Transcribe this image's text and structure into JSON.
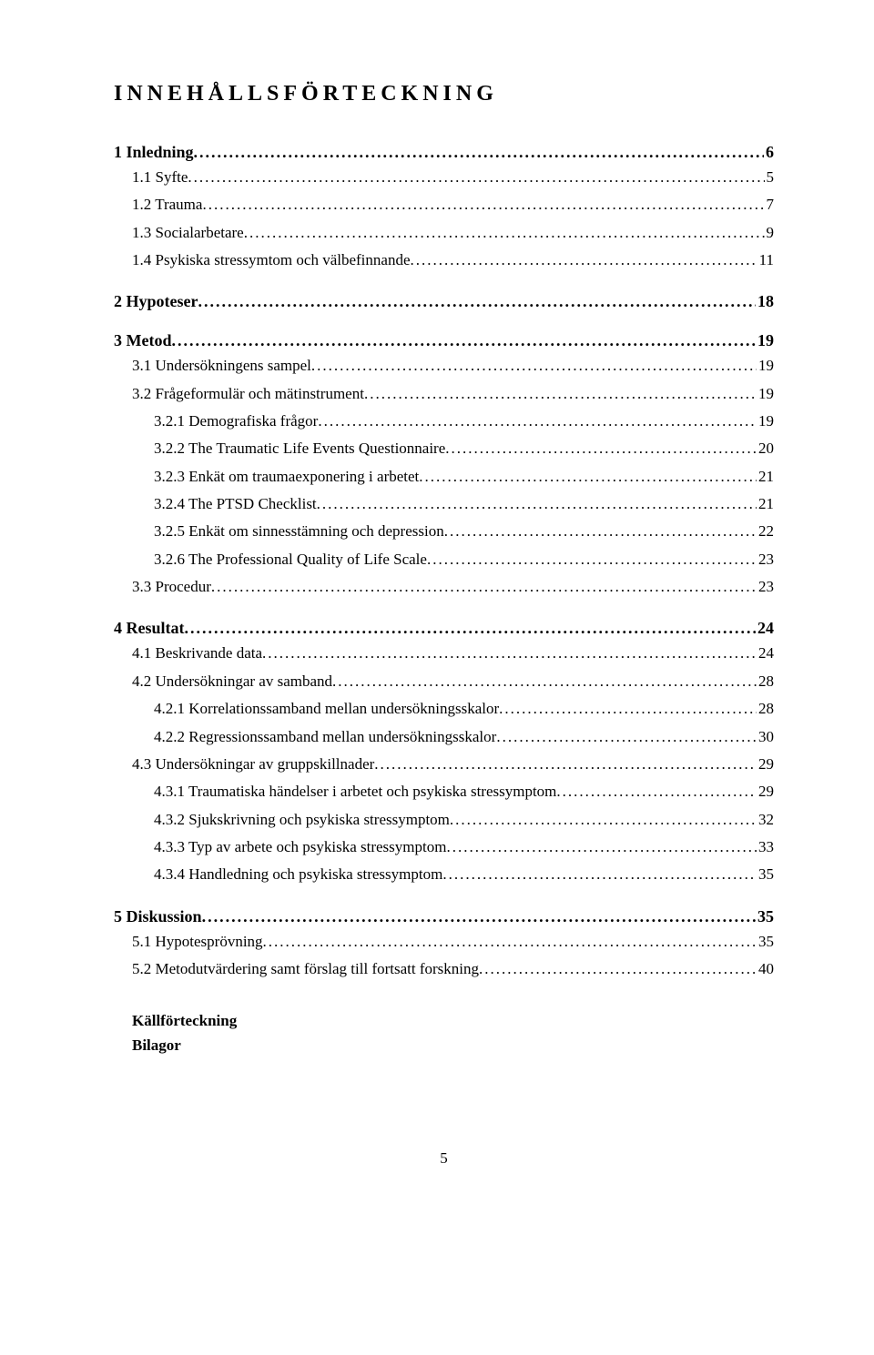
{
  "title": "INNEHÅLLSFÖRTECKNING",
  "entries": [
    {
      "level": 1,
      "label": "1 Inledning",
      "page": "6"
    },
    {
      "level": 2,
      "label": "1.1 Syfte",
      "page": "5"
    },
    {
      "level": 2,
      "label": "1.2 Trauma",
      "page": "7"
    },
    {
      "level": 2,
      "label": "1.3 Socialarbetare",
      "page": "9"
    },
    {
      "level": 2,
      "label": "1.4 Psykiska stressymtom och välbefinnande",
      "page": "11"
    },
    {
      "level": 1,
      "label": "2 Hypoteser",
      "page": "18"
    },
    {
      "level": 1,
      "label": "3 Metod",
      "page": "19"
    },
    {
      "level": 2,
      "label": "3.1 Undersökningens sampel",
      "page": "19"
    },
    {
      "level": 2,
      "label": "3.2 Frågeformulär och mätinstrument",
      "page": "19"
    },
    {
      "level": 3,
      "label": "3.2.1 Demografiska frågor",
      "page": "19"
    },
    {
      "level": 3,
      "label": "3.2.2 The Traumatic Life Events Questionnaire",
      "page": "20"
    },
    {
      "level": 3,
      "label": "3.2.3 Enkät om traumaexponering i arbetet",
      "page": "21"
    },
    {
      "level": 3,
      "label": "3.2.4 The PTSD Checklist",
      "page": "21"
    },
    {
      "level": 3,
      "label": "3.2.5 Enkät om sinnesstämning och depression",
      "page": "22"
    },
    {
      "level": 3,
      "label": "3.2.6 The Professional Quality of Life Scale",
      "page": "23"
    },
    {
      "level": 2,
      "label": "3.3 Procedur",
      "page": "23"
    },
    {
      "level": 1,
      "label": "4 Resultat",
      "page": "24"
    },
    {
      "level": 2,
      "label": "4.1 Beskrivande data",
      "page": "24"
    },
    {
      "level": 2,
      "label": "4.2 Undersökningar av samband",
      "page": "28"
    },
    {
      "level": 3,
      "label": "4.2.1 Korrelationssamband mellan undersökningsskalor",
      "page": "28"
    },
    {
      "level": 3,
      "label": "4.2.2 Regressionssamband mellan undersökningsskalor",
      "page": "30"
    },
    {
      "level": 2,
      "label": "4.3 Undersökningar av gruppskillnader",
      "page": "29"
    },
    {
      "level": 3,
      "label": "4.3.1 Traumatiska händelser i arbetet och psykiska stressymptom",
      "page": "29"
    },
    {
      "level": 3,
      "label": "4.3.2 Sjukskrivning och psykiska stressymptom",
      "page": "32"
    },
    {
      "level": 3,
      "label": "4.3.3 Typ av arbete och psykiska stressymptom",
      "page": "33"
    },
    {
      "level": 3,
      "label": "4.3.4 Handledning och psykiska stressymptom",
      "page": "35"
    },
    {
      "level": 1,
      "label": "5 Diskussion",
      "page": "35"
    },
    {
      "level": 2,
      "label": "5.1 Hypotesprövning",
      "page": "35"
    },
    {
      "level": 2,
      "label": "5.2 Metodutvärdering samt förslag till fortsatt forskning",
      "page": "40"
    }
  ],
  "tail": [
    "Källförteckning",
    "Bilagor"
  ],
  "pageNumber": "5"
}
